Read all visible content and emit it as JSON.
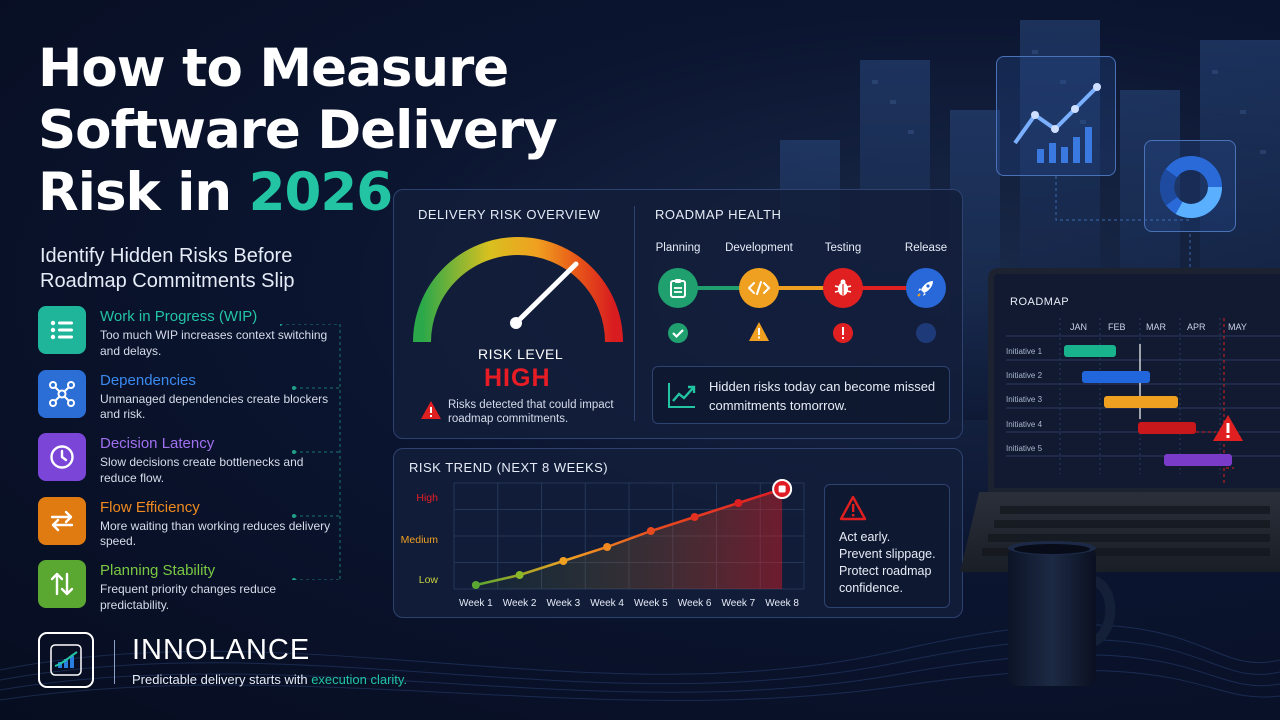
{
  "title": {
    "line1": "How to Measure",
    "line2": "Software Delivery",
    "line3_prefix": "Risk in ",
    "line3_accent": "2026"
  },
  "subtitle": "Identify Hidden Risks Before Roadmap Commitments Slip",
  "colors": {
    "accent": "#22c4a4",
    "high": "#e81c24",
    "panel": "#121e3a"
  },
  "factors": [
    {
      "icon": "list-icon",
      "title": "Work in Progress (WIP)",
      "desc": "Too much WIP increases context switching and delays.",
      "color": "#1fb59a"
    },
    {
      "icon": "network-icon",
      "title": "Dependencies",
      "desc": "Unmanaged dependencies create blockers and risk.",
      "color": "#2b6fd6"
    },
    {
      "icon": "clock-icon",
      "title": "Decision Latency",
      "desc": "Slow decisions create bottlenecks and reduce flow.",
      "color": "#7b46d8"
    },
    {
      "icon": "arrows-swap-icon",
      "title": "Flow Efficiency",
      "desc": "More waiting than working reduces delivery speed.",
      "color": "#e07b12"
    },
    {
      "icon": "up-down-arrows-icon",
      "title": "Planning Stability",
      "desc": "Frequent priority changes reduce predictability.",
      "color": "#5aa832"
    }
  ],
  "brand": {
    "name": "INNOLANCE",
    "tag_prefix": "Predictable delivery starts with ",
    "tag_accent": "execution clarity."
  },
  "risk_overview": {
    "title": "DELIVERY RISK OVERVIEW",
    "level_label": "RISK LEVEL",
    "level_value": "HIGH",
    "gauge_level": 0.82,
    "note": "Risks detected that could impact roadmap commitments."
  },
  "roadmap_health": {
    "title": "ROADMAP HEALTH",
    "stages": [
      {
        "label": "Planning",
        "icon": "clipboard-icon",
        "color": "#1fa06e",
        "status": "check-icon"
      },
      {
        "label": "Development",
        "icon": "code-icon",
        "color": "#f0a020",
        "status": "warning-icon"
      },
      {
        "label": "Testing",
        "icon": "bug-icon",
        "color": "#e02020",
        "status": "error-icon"
      },
      {
        "label": "Release",
        "icon": "rocket-icon",
        "color": "#2868d8",
        "status": "pending-icon"
      }
    ],
    "message": "Hidden risks today can become missed commitments tomorrow."
  },
  "risk_trend": {
    "title": "RISK TREND (NEXT 8 WEEKS)",
    "callout": [
      "Act early.",
      "Prevent slippage.",
      "Protect roadmap",
      "confidence."
    ]
  },
  "chart_data": {
    "type": "line",
    "title": "RISK TREND (NEXT 8 WEEKS)",
    "categories": [
      "Week 1",
      "Week 2",
      "Week 3",
      "Week 4",
      "Week 5",
      "Week 6",
      "Week 7",
      "Week 8"
    ],
    "y_tick_labels": [
      "Low",
      "Medium",
      "High"
    ],
    "values": [
      0.2,
      0.7,
      1.4,
      2.1,
      2.9,
      3.6,
      4.3,
      5.0
    ],
    "ylim": [
      0,
      5.3
    ],
    "grid": true
  },
  "laptop": {
    "title": "ROADMAP",
    "months": [
      "JAN",
      "FEB",
      "MAR",
      "APR",
      "MAY"
    ],
    "initiatives": [
      {
        "name": "Initiative 1",
        "color": "#18b28c"
      },
      {
        "name": "Initiative 2",
        "color": "#2266dd"
      },
      {
        "name": "Initiative 3",
        "color": "#f0a020"
      },
      {
        "name": "Initiative 4",
        "color": "#c8181c"
      },
      {
        "name": "Initiative 5",
        "color": "#7a3cc8"
      }
    ]
  }
}
